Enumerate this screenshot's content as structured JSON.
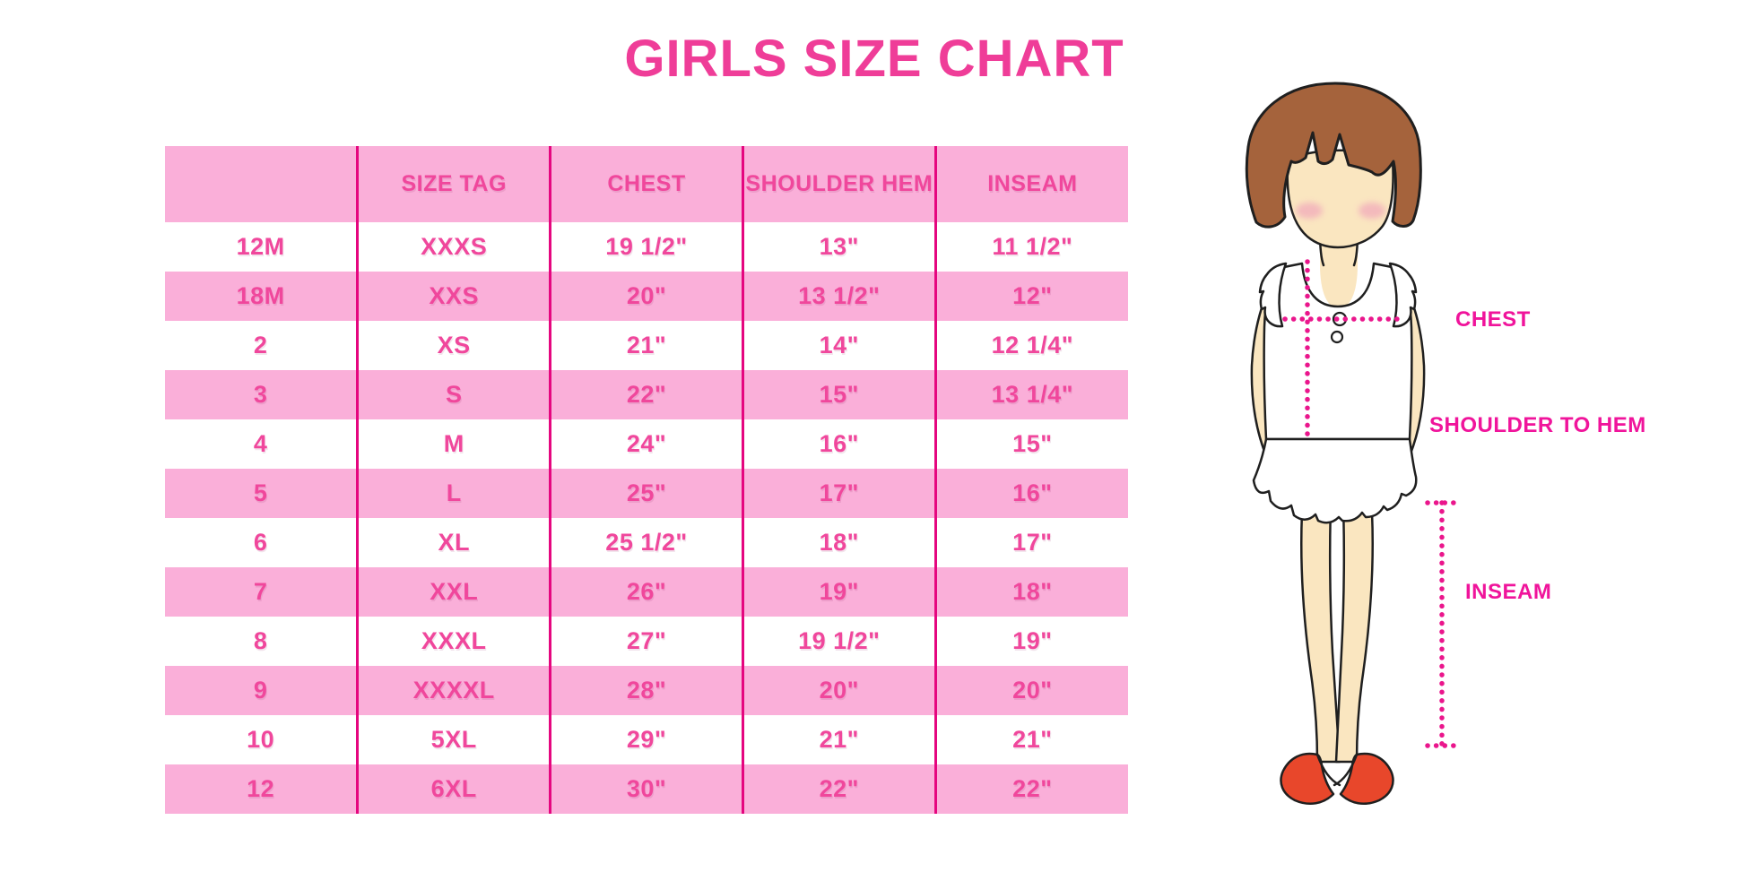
{
  "chart_data": {
    "type": "table",
    "title": "GIRLS SIZE CHART",
    "columns": [
      "",
      "SIZE TAG",
      "CHEST",
      "SHOULDER HEM",
      "INSEAM"
    ],
    "rows": [
      [
        "12M",
        "XXXS",
        "19 1/2\"",
        "13\"",
        "11 1/2\""
      ],
      [
        "18M",
        "XXS",
        "20\"",
        "13 1/2\"",
        "12\""
      ],
      [
        "2",
        "XS",
        "21\"",
        "14\"",
        "12 1/4\""
      ],
      [
        "3",
        "S",
        "22\"",
        "15\"",
        "13 1/4\""
      ],
      [
        "4",
        "M",
        "24\"",
        "16\"",
        "15\""
      ],
      [
        "5",
        "L",
        "25\"",
        "17\"",
        "16\""
      ],
      [
        "6",
        "XL",
        "25 1/2\"",
        "18\"",
        "17\""
      ],
      [
        "7",
        "XXL",
        "26\"",
        "19\"",
        "18\""
      ],
      [
        "8",
        "XXXL",
        "27\"",
        "19 1/2\"",
        "19\""
      ],
      [
        "9",
        "XXXXL",
        "28\"",
        "20\"",
        "20\""
      ],
      [
        "10",
        "5XL",
        "29\"",
        "21\"",
        "21\""
      ],
      [
        "12",
        "6XL",
        "30\"",
        "22\"",
        "22\""
      ]
    ],
    "banding": "header and even data rows pink, others white",
    "legend_position": "none",
    "grid": "vertical column separators only"
  },
  "figure": {
    "labels": {
      "chest": "CHEST",
      "shoulder_to_hem": "SHOULDER TO HEM",
      "inseam": "INSEAM"
    }
  },
  "colors": {
    "title_pink": "#EF3D98",
    "text_pink": "#F0479C",
    "label_pink": "#F0149B",
    "band_pink": "#FAAFD9",
    "line_magenta": "#E5067F",
    "dot_pink": "#EA168C",
    "hair_brown": "#A5633C",
    "skin": "#FAE6C0",
    "blush": "#F2AEBB",
    "shoe_red": "#E8472B"
  }
}
